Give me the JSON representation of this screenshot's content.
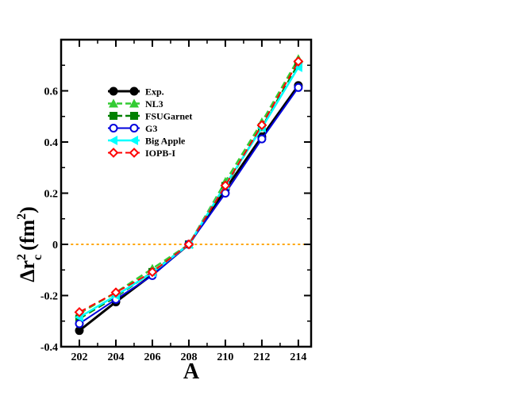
{
  "chart_data": {
    "type": "line",
    "xlabel": "A",
    "ylabel": {
      "delta": "Δr",
      "sub": "c",
      "sup": "2",
      "unit_open": "(fm",
      "unit_sup": "2",
      "unit_close": ")"
    },
    "x": [
      202,
      204,
      206,
      208,
      210,
      212,
      214
    ],
    "xticks": [
      "202",
      "204",
      "206",
      "208",
      "210",
      "212",
      "214"
    ],
    "yticks": [
      {
        "value": -0.4,
        "label": "-0.4"
      },
      {
        "value": -0.2,
        "label": "-0.2"
      },
      {
        "value": 0,
        "label": "0"
      },
      {
        "value": 0.2,
        "label": "0.2"
      },
      {
        "value": 0.4,
        "label": "0.4"
      },
      {
        "value": 0.6,
        "label": "0.6"
      }
    ],
    "xlim": [
      201,
      214.7
    ],
    "ylim": [
      -0.4,
      0.8
    ],
    "reference_line": {
      "y": 0,
      "color": "#ffa500",
      "style": "dotted"
    },
    "legend_position": "top-left",
    "series": [
      {
        "name": "Exp.",
        "values": [
          -0.337,
          -0.225,
          -0.118,
          0.0,
          0.215,
          0.421,
          0.621
        ],
        "color": "#000000",
        "marker": "circle-filled",
        "dash": "solid",
        "width": 3
      },
      {
        "name": "NL3",
        "values": [
          -0.27,
          -0.188,
          -0.095,
          0.0,
          0.245,
          0.478,
          0.725
        ],
        "color": "#33cc33",
        "marker": "triangle-up-filled",
        "dash": "dashed",
        "width": 2.5
      },
      {
        "name": "FSUGarnet",
        "values": [
          -0.29,
          -0.205,
          -0.108,
          0.0,
          0.228,
          0.458,
          0.705
        ],
        "color": "#008000",
        "marker": "square-filled",
        "dash": "dashed",
        "width": 2.5
      },
      {
        "name": "G3",
        "values": [
          -0.31,
          -0.215,
          -0.122,
          0.0,
          0.2,
          0.412,
          0.613
        ],
        "color": "#0000dd",
        "marker": "circle-open",
        "dash": "solid",
        "width": 2
      },
      {
        "name": "Big Apple",
        "values": [
          -0.285,
          -0.2,
          -0.11,
          0.0,
          0.232,
          0.455,
          0.692
        ],
        "color": "#00ffff",
        "marker": "triangle-left-filled",
        "dash": "solid",
        "width": 2.5
      },
      {
        "name": "IOPB-I",
        "values": [
          -0.265,
          -0.188,
          -0.108,
          0.0,
          0.23,
          0.466,
          0.715
        ],
        "color": "#ff0000",
        "marker": "diamond-open",
        "dash": "dashed",
        "width": 2
      }
    ]
  }
}
